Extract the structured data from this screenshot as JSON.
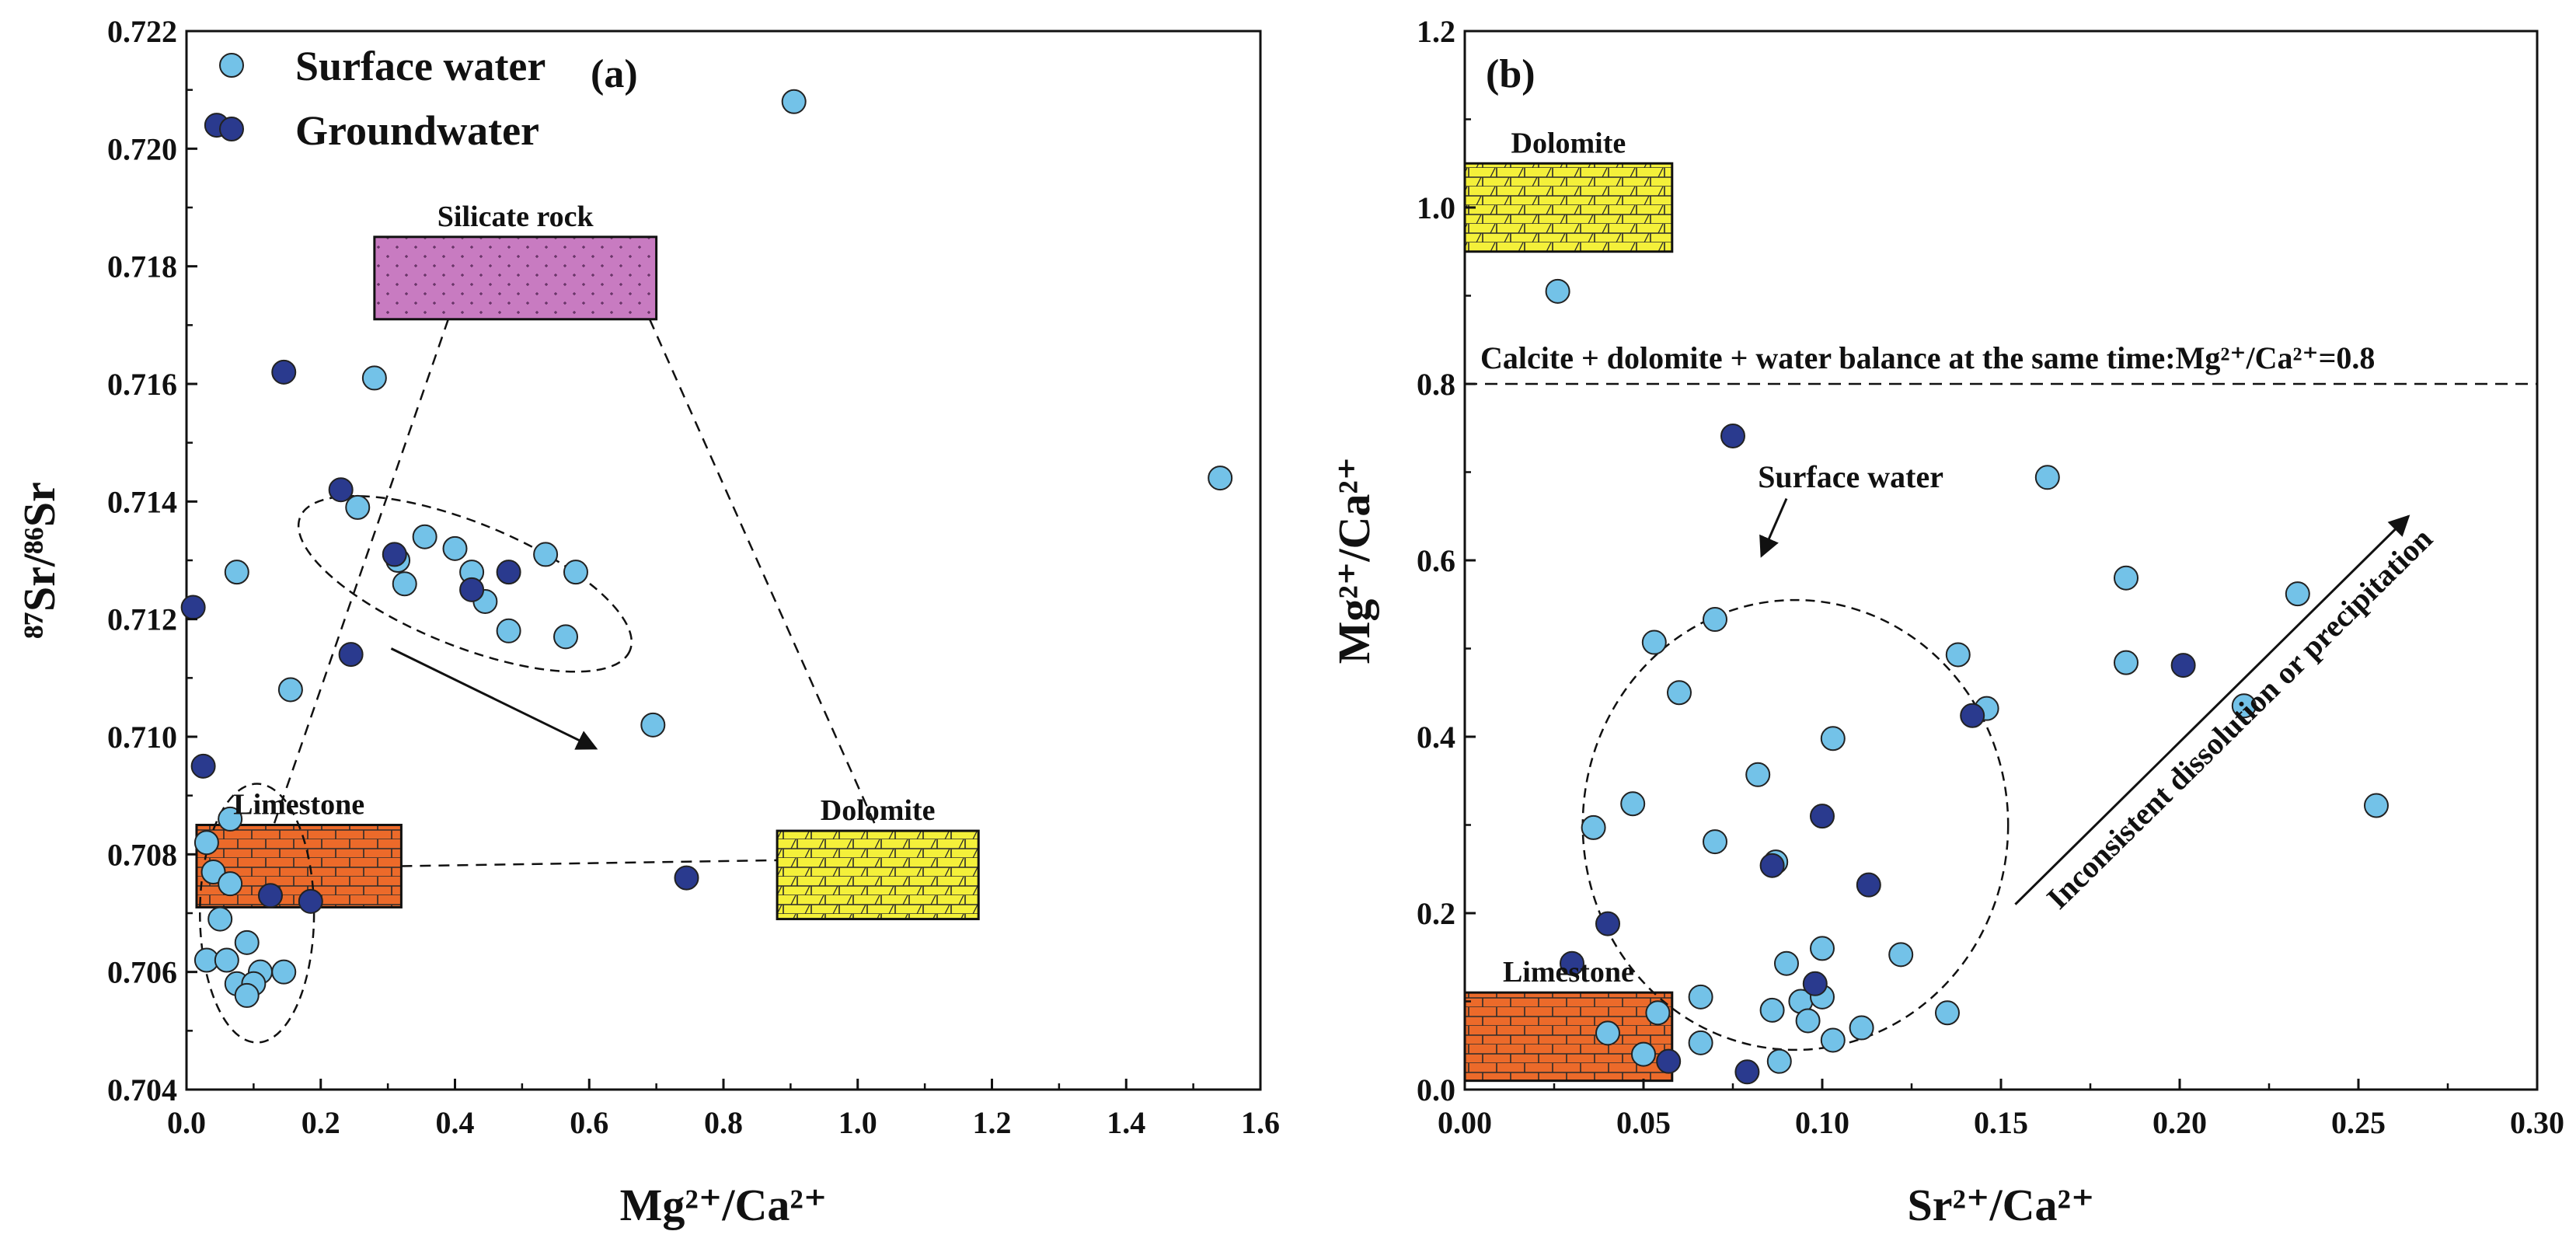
{
  "colors": {
    "surface_water": "#73c2e8",
    "groundwater": "#2a3a8e",
    "silicate_fill": "#c87bc1",
    "limestone_fill": "#ec6a2a",
    "dolomite_fill": "#f4f03a",
    "axis": "#111111"
  },
  "chart_data": [
    {
      "type": "scatter",
      "panel_tag": "(a)",
      "xlabel": "Mg²⁺/Ca²⁺",
      "ylabel": "⁸⁷Sr/⁸⁶Sr",
      "xlim": [
        0.0,
        1.6
      ],
      "ylim": [
        0.704,
        0.722
      ],
      "xticks": [
        {
          "v": 0.0,
          "label": "0.0"
        },
        {
          "v": 0.2,
          "label": "0.2"
        },
        {
          "v": 0.4,
          "label": "0.4"
        },
        {
          "v": 0.6,
          "label": "0.6"
        },
        {
          "v": 0.8,
          "label": "0.8"
        },
        {
          "v": 1.0,
          "label": "1.0"
        },
        {
          "v": 1.2,
          "label": "1.2"
        },
        {
          "v": 1.4,
          "label": "1.4"
        },
        {
          "v": 1.6,
          "label": "1.6"
        }
      ],
      "yticks": [
        {
          "v": 0.704,
          "label": "0.704"
        },
        {
          "v": 0.706,
          "label": "0.706"
        },
        {
          "v": 0.708,
          "label": "0.708"
        },
        {
          "v": 0.71,
          "label": "0.710"
        },
        {
          "v": 0.712,
          "label": "0.712"
        },
        {
          "v": 0.714,
          "label": "0.714"
        },
        {
          "v": 0.716,
          "label": "0.716"
        },
        {
          "v": 0.718,
          "label": "0.718"
        },
        {
          "v": 0.72,
          "label": "0.720"
        },
        {
          "v": 0.722,
          "label": "0.722"
        }
      ],
      "legend": [
        {
          "series": "surface",
          "label": "Surface water"
        },
        {
          "series": "ground",
          "label": "Groundwater"
        }
      ],
      "rock_boxes": [
        {
          "name": "Silicate rock",
          "kind": "silicate",
          "x0": 0.28,
          "x1": 0.7,
          "y0": 0.7171,
          "y1": 0.7185
        },
        {
          "name": "Limestone",
          "kind": "limestone",
          "x0": 0.015,
          "x1": 0.32,
          "y0": 0.7071,
          "y1": 0.7085
        },
        {
          "name": "Dolomite",
          "kind": "dolomite",
          "x0": 0.88,
          "x1": 1.18,
          "y0": 0.7069,
          "y1": 0.7084
        }
      ],
      "mixing_lines": [
        [
          [
            0.39,
            0.7171
          ],
          [
            0.13,
            0.7085
          ]
        ],
        [
          [
            0.69,
            0.7171
          ],
          [
            1.03,
            0.7084
          ]
        ],
        [
          [
            0.32,
            0.7078
          ],
          [
            0.88,
            0.7079
          ]
        ]
      ],
      "ellipses": [
        {
          "cx": 0.415,
          "cy": 0.7126,
          "rx": 0.265,
          "ry": 0.00105,
          "angle_deg": 22
        },
        {
          "cx": 0.105,
          "cy": 0.707,
          "rx": 0.085,
          "ry": 0.0022,
          "angle_deg": 0
        }
      ],
      "arrows": [
        {
          "from": [
            0.305,
            0.7115
          ],
          "to": [
            0.61,
            0.7098
          ]
        }
      ],
      "series": [
        {
          "name": "Surface water",
          "key": "surface",
          "points": [
            [
              0.905,
              0.7208
            ],
            [
              0.28,
              0.7161
            ],
            [
              0.255,
              0.7139
            ],
            [
              0.355,
              0.7134
            ],
            [
              0.4,
              0.7132
            ],
            [
              0.535,
              0.7131
            ],
            [
              0.315,
              0.713
            ],
            [
              0.425,
              0.7128
            ],
            [
              0.58,
              0.7128
            ],
            [
              0.075,
              0.7128
            ],
            [
              0.325,
              0.7126
            ],
            [
              0.445,
              0.7123
            ],
            [
              0.48,
              0.7118
            ],
            [
              0.565,
              0.7117
            ],
            [
              0.155,
              0.7108
            ],
            [
              0.695,
              0.7102
            ],
            [
              1.54,
              0.7144
            ],
            [
              0.065,
              0.7086
            ],
            [
              0.03,
              0.7082
            ],
            [
              0.04,
              0.7077
            ],
            [
              0.065,
              0.7075
            ],
            [
              0.05,
              0.7069
            ],
            [
              0.09,
              0.7065
            ],
            [
              0.03,
              0.7062
            ],
            [
              0.06,
              0.7062
            ],
            [
              0.11,
              0.706
            ],
            [
              0.145,
              0.706
            ],
            [
              0.075,
              0.7058
            ],
            [
              0.1,
              0.7058
            ],
            [
              0.09,
              0.7056
            ]
          ]
        },
        {
          "name": "Groundwater",
          "key": "ground",
          "points": [
            [
              0.045,
              0.7204
            ],
            [
              0.145,
              0.7162
            ],
            [
              0.23,
              0.7142
            ],
            [
              0.31,
              0.7131
            ],
            [
              0.48,
              0.7128
            ],
            [
              0.425,
              0.7125
            ],
            [
              0.01,
              0.7122
            ],
            [
              0.245,
              0.7114
            ],
            [
              0.025,
              0.7095
            ],
            [
              0.745,
              0.7076
            ],
            [
              0.125,
              0.7073
            ],
            [
              0.185,
              0.7072
            ]
          ]
        }
      ]
    },
    {
      "type": "scatter",
      "panel_tag": "(b)",
      "xlabel": "Sr²⁺/Ca²⁺",
      "ylabel": "Mg²⁺/Ca²⁺",
      "xlim": [
        0.0,
        0.3
      ],
      "ylim": [
        0.0,
        1.2
      ],
      "xticks": [
        {
          "v": 0.0,
          "label": "0.00"
        },
        {
          "v": 0.05,
          "label": "0.05"
        },
        {
          "v": 0.1,
          "label": "0.10"
        },
        {
          "v": 0.15,
          "label": "0.15"
        },
        {
          "v": 0.2,
          "label": "0.20"
        },
        {
          "v": 0.25,
          "label": "0.25"
        },
        {
          "v": 0.3,
          "label": "0.30"
        }
      ],
      "yticks": [
        {
          "v": 0.0,
          "label": "0.0"
        },
        {
          "v": 0.2,
          "label": "0.2"
        },
        {
          "v": 0.4,
          "label": "0.4"
        },
        {
          "v": 0.6,
          "label": "0.6"
        },
        {
          "v": 0.8,
          "label": "0.8"
        },
        {
          "v": 1.0,
          "label": "1.0"
        },
        {
          "v": 1.2,
          "label": "1.2"
        }
      ],
      "rock_boxes": [
        {
          "name": "Dolomite",
          "kind": "dolomite",
          "x0": 0.0,
          "x1": 0.058,
          "y0": 0.95,
          "y1": 1.05
        },
        {
          "name": "Limestone",
          "kind": "limestone",
          "x0": 0.0,
          "x1": 0.058,
          "y0": 0.01,
          "y1": 0.11
        }
      ],
      "hline": {
        "y": 0.8,
        "label": "Calcite + dolomite + water balance at the same time:Mg²⁺/Ca²⁺=0.8"
      },
      "ellipses": [
        {
          "cx": 0.0925,
          "cy": 0.3,
          "rx": 0.0595,
          "ry": 0.255,
          "angle_deg": 0
        }
      ],
      "annotations": [
        {
          "text": "Surface water",
          "x": 0.082,
          "y": 0.695,
          "arrow_from": [
            0.09,
            0.67
          ],
          "arrow_to": [
            0.083,
            0.605
          ]
        },
        {
          "text": "Inconsistent dissolution or precipitation",
          "from": [
            0.154,
            0.21
          ],
          "to": [
            0.264,
            0.65
          ]
        }
      ],
      "series": [
        {
          "name": "Surface water",
          "key": "surface",
          "points": [
            [
              0.026,
              0.905
            ],
            [
              0.163,
              0.694
            ],
            [
              0.185,
              0.58
            ],
            [
              0.233,
              0.562
            ],
            [
              0.053,
              0.507
            ],
            [
              0.07,
              0.533
            ],
            [
              0.138,
              0.493
            ],
            [
              0.185,
              0.484
            ],
            [
              0.06,
              0.45
            ],
            [
              0.146,
              0.432
            ],
            [
              0.218,
              0.435
            ],
            [
              0.103,
              0.398
            ],
            [
              0.082,
              0.357
            ],
            [
              0.047,
              0.324
            ],
            [
              0.036,
              0.297
            ],
            [
              0.255,
              0.322
            ],
            [
              0.07,
              0.281
            ],
            [
              0.087,
              0.258
            ],
            [
              0.122,
              0.153
            ],
            [
              0.09,
              0.143
            ],
            [
              0.1,
              0.16
            ],
            [
              0.066,
              0.105
            ],
            [
              0.094,
              0.1
            ],
            [
              0.1,
              0.105
            ],
            [
              0.054,
              0.087
            ],
            [
              0.086,
              0.09
            ],
            [
              0.135,
              0.087
            ],
            [
              0.096,
              0.078
            ],
            [
              0.111,
              0.07
            ],
            [
              0.04,
              0.064
            ],
            [
              0.103,
              0.056
            ],
            [
              0.066,
              0.053
            ],
            [
              0.05,
              0.04
            ],
            [
              0.088,
              0.032
            ]
          ]
        },
        {
          "name": "Groundwater",
          "key": "ground",
          "points": [
            [
              0.075,
              0.741
            ],
            [
              0.201,
              0.481
            ],
            [
              0.142,
              0.424
            ],
            [
              0.1,
              0.31
            ],
            [
              0.086,
              0.254
            ],
            [
              0.113,
              0.232
            ],
            [
              0.04,
              0.188
            ],
            [
              0.03,
              0.143
            ],
            [
              0.098,
              0.12
            ],
            [
              0.057,
              0.032
            ],
            [
              0.079,
              0.02
            ]
          ]
        }
      ]
    }
  ]
}
